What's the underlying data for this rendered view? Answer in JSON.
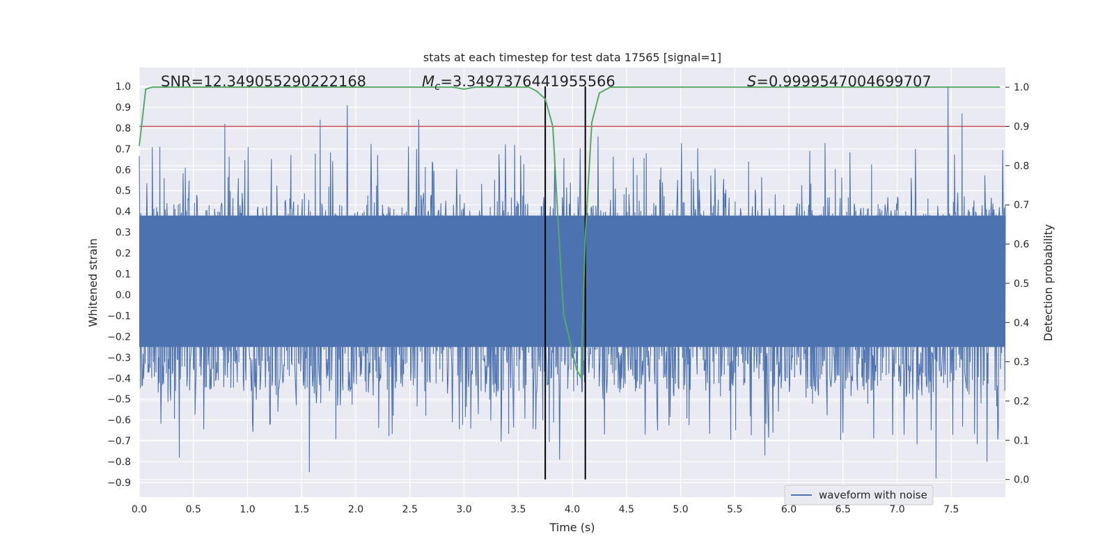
{
  "chart_data": {
    "type": "line",
    "title": "stats at each timestep for test data 17565 [signal=1]",
    "xlabel": "Time (s)",
    "ylabel_left": "Whitened strain",
    "ylabel_right": "Detection probability",
    "xlim": [
      0.0,
      8.0
    ],
    "ylim_left": [
      -0.97,
      1.09
    ],
    "ylim_right": [
      -0.045,
      1.05
    ],
    "x_ticks": [
      0.0,
      0.5,
      1.0,
      1.5,
      2.0,
      2.5,
      3.0,
      3.5,
      4.0,
      4.5,
      5.0,
      5.5,
      6.0,
      6.5,
      7.0,
      7.5
    ],
    "x_tick_labels": [
      "0.0",
      "0.5",
      "1.0",
      "1.5",
      "2.0",
      "2.5",
      "3.0",
      "3.5",
      "4.0",
      "4.5",
      "5.0",
      "5.5",
      "6.0",
      "6.5",
      "7.0",
      "7.5"
    ],
    "y_left_ticks": [
      -0.9,
      -0.8,
      -0.7,
      -0.6,
      -0.5,
      -0.4,
      -0.3,
      -0.2,
      -0.1,
      0.0,
      0.1,
      0.2,
      0.3,
      0.4,
      0.5,
      0.6,
      0.7,
      0.8,
      0.9,
      1.0
    ],
    "y_left_tick_labels": [
      "−0.9",
      "−0.8",
      "−0.7",
      "−0.6",
      "−0.5",
      "−0.4",
      "−0.3",
      "−0.2",
      "−0.1",
      "0.0",
      "0.1",
      "0.2",
      "0.3",
      "0.4",
      "0.5",
      "0.6",
      "0.7",
      "0.8",
      "0.9",
      "1.0"
    ],
    "y_right_ticks": [
      0.0,
      0.1,
      0.2,
      0.3,
      0.4,
      0.5,
      0.6,
      0.7,
      0.8,
      0.9,
      1.0
    ],
    "y_right_tick_labels": [
      "0.0",
      "0.1",
      "0.2",
      "0.3",
      "0.4",
      "0.5",
      "0.6",
      "0.7",
      "0.8",
      "0.9",
      "1.0"
    ],
    "annotations": {
      "snr": "SNR=12.349055290222168",
      "mc_symbol": "M",
      "mc_sub": "c",
      "mc_value": "=3.3497376441955566",
      "s_symbol": "S",
      "s_value": "=0.9999547004699707"
    },
    "legend": {
      "label": "waveform with noise",
      "location": "lower-right"
    },
    "waveform": {
      "name": "waveform with noise",
      "color": "#4c72b0",
      "samples": 1600,
      "t_start": 0.0,
      "t_end": 8.0,
      "core_range": [
        -0.25,
        0.38
      ],
      "peaks": [
        {
          "t": 0.79,
          "v": 0.82
        },
        {
          "t": 1.67,
          "v": 0.84
        },
        {
          "t": 1.92,
          "v": 0.91
        },
        {
          "t": 2.58,
          "v": 0.84
        },
        {
          "t": 7.47,
          "v": 1.0
        },
        {
          "t": 7.6,
          "v": 0.87
        },
        {
          "t": 1.57,
          "v": -0.85
        },
        {
          "t": 7.36,
          "v": -0.88
        },
        {
          "t": 3.88,
          "v": -0.79
        },
        {
          "t": 0.37,
          "v": -0.78
        },
        {
          "t": 0.19,
          "v": 0.71
        },
        {
          "t": 4.24,
          "v": 0.76
        },
        {
          "t": 5.78,
          "v": -0.77
        },
        {
          "t": 7.83,
          "v": -0.8
        }
      ]
    },
    "detection_probability": {
      "name": "detection probability",
      "color": "#55a868",
      "x": [
        0.0,
        0.06,
        0.12,
        2.9,
        3.0,
        3.1,
        3.6,
        3.67,
        3.75,
        3.82,
        3.87,
        3.92,
        3.98,
        4.04,
        4.08,
        4.12,
        4.18,
        4.25,
        4.35,
        7.95
      ],
      "y": [
        0.85,
        0.995,
        1.0,
        1.0,
        0.995,
        1.0,
        1.0,
        0.99,
        0.97,
        0.9,
        0.65,
        0.42,
        0.35,
        0.28,
        0.26,
        0.62,
        0.91,
        0.985,
        1.0,
        1.0
      ]
    },
    "threshold": {
      "value": 0.9,
      "axis": "right",
      "color": "#c44e52"
    },
    "event_markers": {
      "x": [
        3.75,
        4.12
      ],
      "color": "#000000"
    }
  }
}
